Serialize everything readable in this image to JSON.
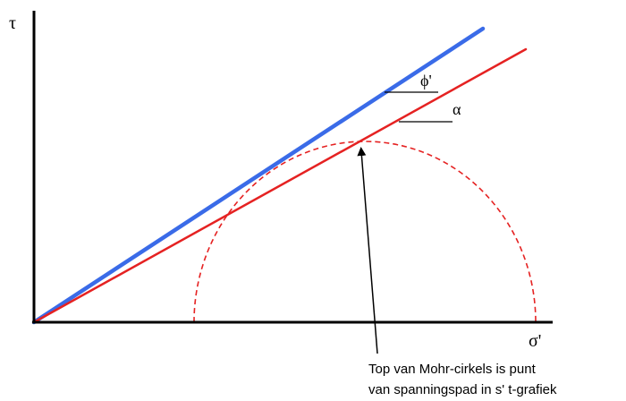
{
  "axes": {
    "y_label": "τ",
    "x_label": "σ'"
  },
  "lines": {
    "phi_label": "ϕ'",
    "alpha_label": "α",
    "phi_color": "#3a6be8",
    "alpha_color": "#e52222"
  },
  "mohr_circle": {
    "color": "#e52222",
    "style": "dashed"
  },
  "annotation": {
    "line1": "Top van Mohr-cirkels is punt",
    "line2": "van spanningspad in s' t-grafiek"
  }
}
